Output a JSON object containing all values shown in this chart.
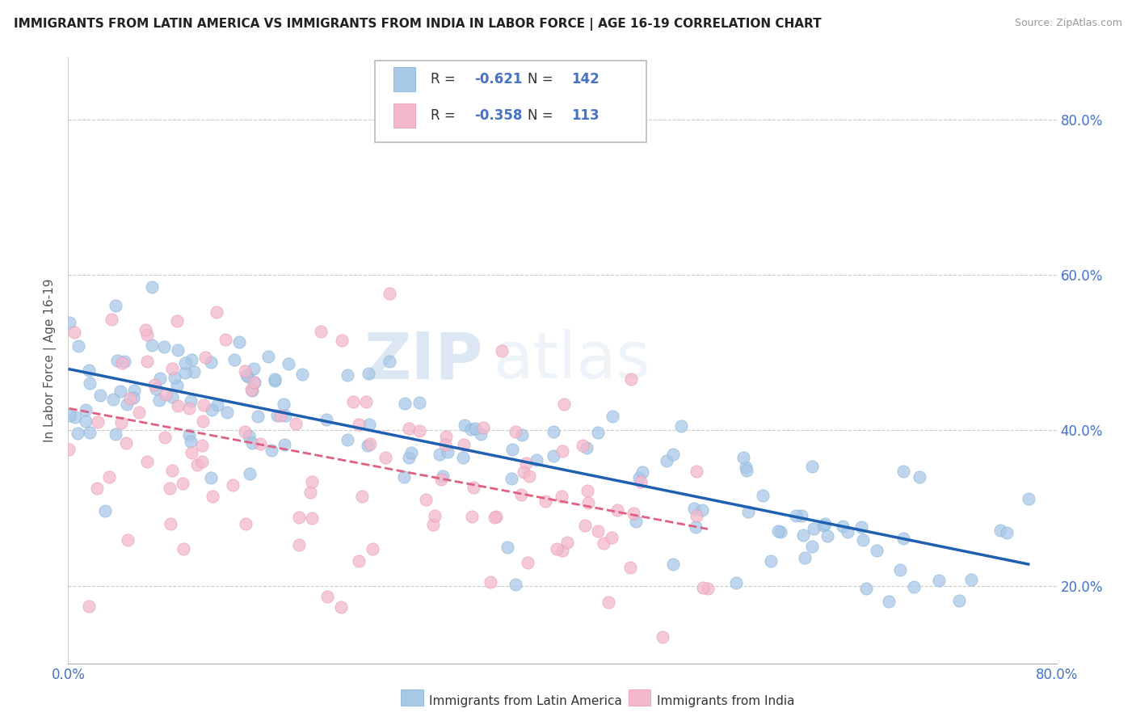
{
  "title": "IMMIGRANTS FROM LATIN AMERICA VS IMMIGRANTS FROM INDIA IN LABOR FORCE | AGE 16-19 CORRELATION CHART",
  "source": "Source: ZipAtlas.com",
  "ylabel": "In Labor Force | Age 16-19",
  "xlim": [
    0.0,
    0.8
  ],
  "ylim": [
    0.1,
    0.88
  ],
  "x_ticks": [
    0.0,
    0.1,
    0.2,
    0.3,
    0.4,
    0.5,
    0.6,
    0.7,
    0.8
  ],
  "y_ticks": [
    0.2,
    0.4,
    0.6,
    0.8
  ],
  "r_latin": -0.621,
  "n_latin": 142,
  "r_india": -0.358,
  "n_india": 113,
  "legend_labels": [
    "Immigrants from Latin America",
    "Immigrants from India"
  ],
  "watermark_zip": "ZIP",
  "watermark_atlas": "atlas",
  "color_latin": "#a8c8e8",
  "color_latin_edge": "#7bafd4",
  "color_india": "#f4b8cc",
  "color_india_edge": "#e890aa",
  "color_latin_line": "#2060b0",
  "color_india_line": "#e06080",
  "grid_color": "#cccccc",
  "title_color": "#222222",
  "axis_color": "#4472C4",
  "seed": 99
}
